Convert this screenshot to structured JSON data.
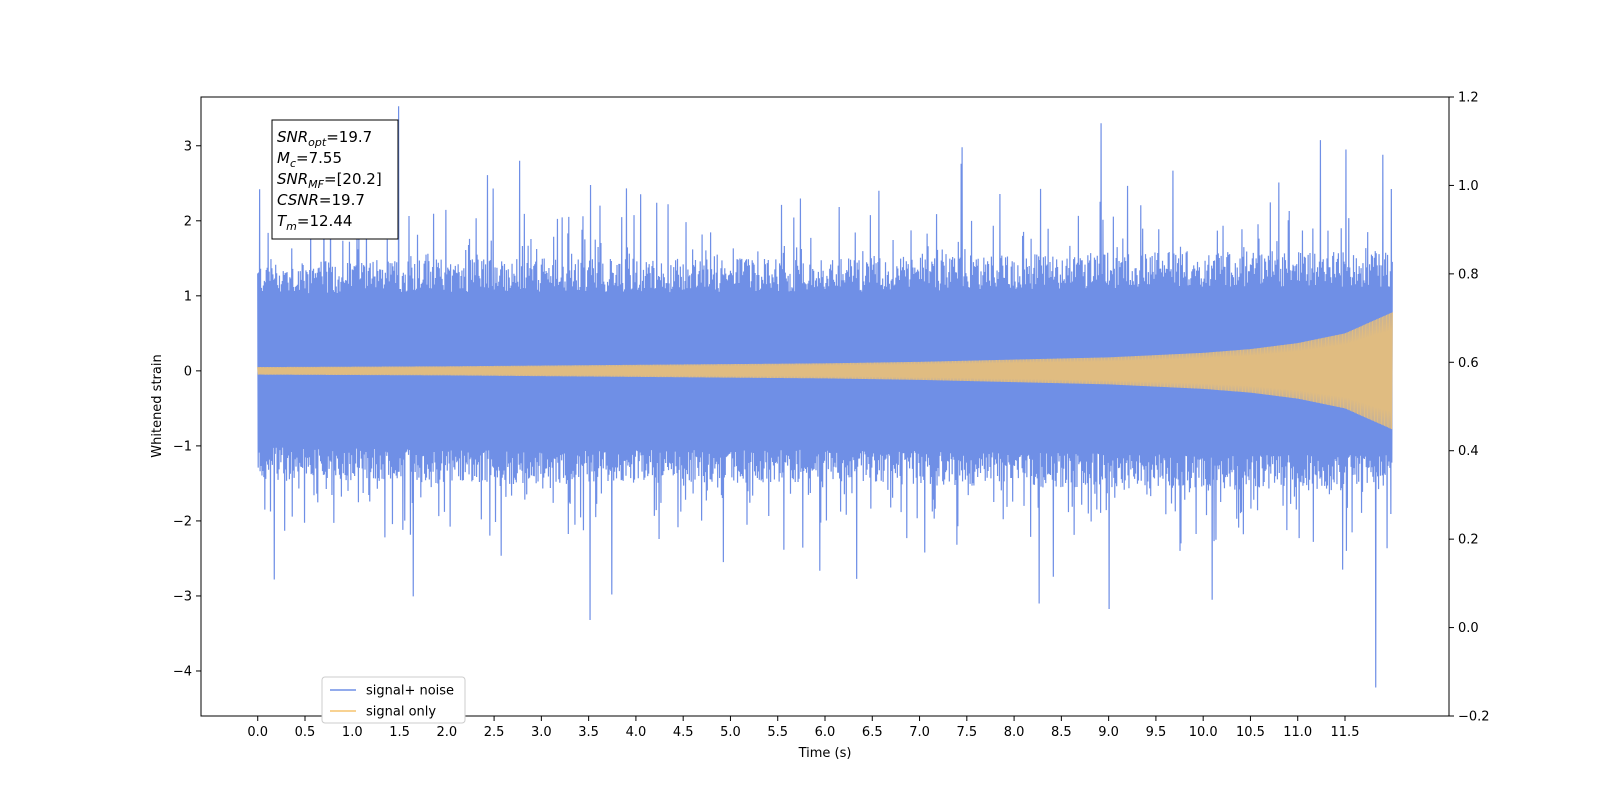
{
  "chart_data": {
    "type": "line",
    "title": "",
    "xlabel": "Time (s)",
    "ylabel": "Whitened strain",
    "xlim": [
      -0.6,
      12.6
    ],
    "ylim": [
      -4.6,
      3.65
    ],
    "y2lim": [
      -0.2,
      1.2
    ],
    "x_ticks": [
      "0.0",
      "0.5",
      "1.0",
      "1.5",
      "2.0",
      "2.5",
      "3.0",
      "3.5",
      "4.0",
      "4.5",
      "5.0",
      "5.5",
      "6.0",
      "6.5",
      "7.0",
      "7.5",
      "8.0",
      "8.5",
      "9.0",
      "9.5",
      "10.0",
      "10.5",
      "11.0",
      "11.5"
    ],
    "y_ticks": [
      "3",
      "2",
      "1",
      "0",
      "−1",
      "−2",
      "−3",
      "−4"
    ],
    "y_tick_values": [
      3,
      2,
      1,
      0,
      -1,
      -2,
      -3,
      -4
    ],
    "y2_ticks": [
      "1.2",
      "1.0",
      "0.8",
      "0.6",
      "0.4",
      "0.2",
      "0.0",
      "−0.2"
    ],
    "y2_tick_values": [
      1.2,
      1.0,
      0.8,
      0.6,
      0.4,
      0.2,
      0.0,
      -0.2
    ],
    "grid": false,
    "legend_position": "bottom-left",
    "series": [
      {
        "name": "signal+ noise",
        "color": "#6f8fe6",
        "x_range": [
          0.0,
          12.0
        ],
        "band_envelope": {
          "x": [
            0,
            2,
            4,
            6,
            8,
            10,
            11,
            11.5,
            12
          ],
          "upper": [
            1.45,
            1.5,
            1.5,
            1.5,
            1.55,
            1.6,
            1.6,
            1.6,
            1.6
          ],
          "lower": [
            -1.45,
            -1.5,
            -1.5,
            -1.5,
            -1.55,
            -1.6,
            -1.6,
            -1.6,
            -1.6
          ]
        },
        "notable_peaks": [
          {
            "x": 0.02,
            "y": 2.42
          },
          {
            "x": 0.17,
            "y": -2.78
          },
          {
            "x": 2.77,
            "y": 2.8
          },
          {
            "x": 3.52,
            "y": -3.32
          },
          {
            "x": 3.75,
            "y": -2.98
          },
          {
            "x": 7.45,
            "y": 2.98
          },
          {
            "x": 8.27,
            "y": -3.1
          },
          {
            "x": 8.92,
            "y": 3.3
          },
          {
            "x": 10.1,
            "y": -3.05
          },
          {
            "x": 11.51,
            "y": 2.95
          },
          {
            "x": 11.82,
            "y": -4.22
          },
          {
            "x": 11.9,
            "y": 2.88
          }
        ]
      },
      {
        "name": "signal only",
        "color": "#f5c46e",
        "x_range": [
          0.0,
          12.0
        ],
        "amplitude_envelope": {
          "x": [
            0,
            1,
            2,
            3,
            4,
            5,
            6,
            7,
            8,
            9,
            10,
            10.5,
            11,
            11.5,
            12
          ],
          "amplitude": [
            0.05,
            0.055,
            0.06,
            0.07,
            0.08,
            0.09,
            0.1,
            0.12,
            0.15,
            0.18,
            0.24,
            0.29,
            0.37,
            0.5,
            0.78
          ]
        }
      }
    ],
    "annotation_box": {
      "lines": [
        {
          "base": "SNR",
          "sub": "opt",
          "rest": "=19.7"
        },
        {
          "base": "M",
          "sub": "c",
          "rest": "=7.55"
        },
        {
          "base": "SNR",
          "sub": "MF",
          "rest": "=[20.2]"
        },
        {
          "base": "CSNR",
          "sub": "",
          "rest": "=19.7"
        },
        {
          "base": "T",
          "sub": "m",
          "rest": "=12.44"
        }
      ]
    }
  }
}
